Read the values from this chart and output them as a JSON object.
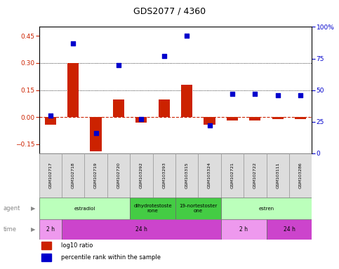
{
  "title": "GDS2077 / 4360",
  "samples": [
    "GSM102717",
    "GSM102718",
    "GSM102719",
    "GSM102720",
    "GSM103292",
    "GSM103293",
    "GSM103315",
    "GSM103324",
    "GSM102721",
    "GSM102722",
    "GSM103111",
    "GSM103286"
  ],
  "log10_ratio": [
    -0.04,
    0.3,
    -0.19,
    0.1,
    -0.03,
    0.1,
    0.18,
    -0.04,
    -0.02,
    -0.02,
    -0.01,
    -0.01
  ],
  "percentile_rank": [
    30,
    87,
    16,
    70,
    27,
    77,
    93,
    22,
    47,
    47,
    46,
    46
  ],
  "ylim_left": [
    -0.2,
    0.5
  ],
  "ylim_right": [
    0,
    100
  ],
  "yticks_left": [
    -0.15,
    0.0,
    0.15,
    0.3,
    0.45
  ],
  "yticks_right": [
    0,
    25,
    50,
    75,
    100
  ],
  "bar_color": "#CC2200",
  "dot_color": "#0000CC",
  "zero_line_color": "#CC2200",
  "agents": [
    {
      "label": "estradiol",
      "start": 0,
      "end": 4,
      "color": "#BBFFBB"
    },
    {
      "label": "dihydrotestoste\nrone",
      "start": 4,
      "end": 6,
      "color": "#44CC44"
    },
    {
      "label": "19-nortestoster\none",
      "start": 6,
      "end": 8,
      "color": "#44CC44"
    },
    {
      "label": "estren",
      "start": 8,
      "end": 12,
      "color": "#BBFFBB"
    }
  ],
  "times": [
    {
      "label": "2 h",
      "start": 0,
      "end": 1,
      "color": "#EE99EE"
    },
    {
      "label": "24 h",
      "start": 1,
      "end": 8,
      "color": "#CC44CC"
    },
    {
      "label": "2 h",
      "start": 8,
      "end": 10,
      "color": "#EE99EE"
    },
    {
      "label": "24 h",
      "start": 10,
      "end": 12,
      "color": "#CC44CC"
    }
  ],
  "legend_red": "log10 ratio",
  "legend_blue": "percentile rank within the sample",
  "background_color": "#FFFFFF",
  "tick_label_color_left": "#CC2200",
  "tick_label_color_right": "#0000CC",
  "bar_width": 0.5,
  "dot_size": 25,
  "sample_bg_color": "#DDDDDD",
  "sample_border_color": "#999999"
}
